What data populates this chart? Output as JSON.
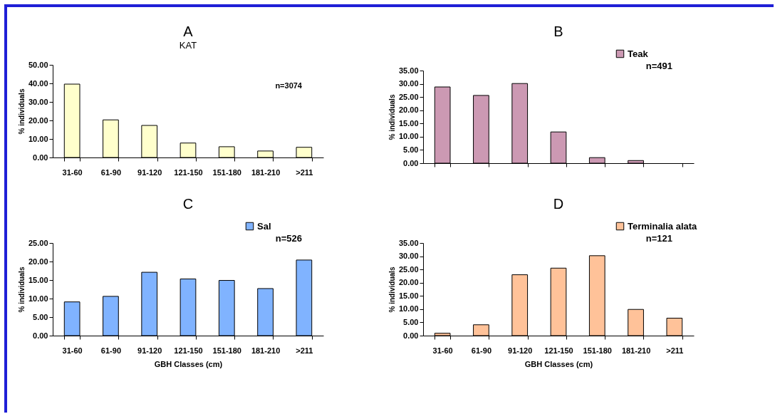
{
  "chart_data": [
    {
      "type": "bar",
      "title": "A",
      "subtitle": "KAT",
      "ylabel": "% individuals",
      "categories": [
        "31-60",
        "61-90",
        "91-120",
        "121-150",
        "151-180",
        "181-210",
        ">211"
      ],
      "series": [
        {
          "color": "#ffffcc",
          "values": [
            39.6,
            20.3,
            17.3,
            7.8,
            5.8,
            3.5,
            5.5
          ]
        }
      ],
      "ylim": [
        0,
        50
      ],
      "yticks": [
        {
          "value": 0,
          "label": "0.00"
        },
        {
          "value": 10,
          "label": "10.00"
        },
        {
          "value": 20,
          "label": "20.00"
        },
        {
          "value": 30,
          "label": "30.00"
        },
        {
          "value": 40,
          "label": "40.00"
        },
        {
          "value": 50,
          "label": "50.00"
        }
      ],
      "annotations": [
        "n=3074"
      ]
    },
    {
      "type": "bar",
      "title": "B",
      "ylabel": "% individuals",
      "categories": [
        null,
        null,
        null,
        null,
        null,
        null,
        null
      ],
      "series": [
        {
          "name": "Teak",
          "color": "#cc99b3",
          "values": [
            28.8,
            25.6,
            30.1,
            11.8,
            2.1,
            1.0,
            null
          ]
        }
      ],
      "ylim": [
        0,
        35
      ],
      "yticks": [
        {
          "value": 0,
          "label": "0.00"
        },
        {
          "value": 5,
          "label": "5.00"
        },
        {
          "value": 10,
          "label": "10.00"
        },
        {
          "value": 15,
          "label": "15.00"
        },
        {
          "value": 20,
          "label": "20.00"
        },
        {
          "value": 25,
          "label": "25.00"
        },
        {
          "value": 30,
          "label": "30.00"
        },
        {
          "value": 35,
          "label": "35.00"
        }
      ],
      "tick_labels": "y",
      "legend": "top right",
      "annotations": [
        "n=491"
      ]
    },
    {
      "type": "bar",
      "title": "C",
      "ylabel": "% individuals",
      "xlabel": "GBH Classes (cm)",
      "categories": [
        "31-60",
        "61-90",
        "91-120",
        "121-150",
        "151-180",
        "181-210",
        ">211"
      ],
      "series": [
        {
          "name": "Sal",
          "color": "#80b3ff",
          "values": [
            9.1,
            10.6,
            17.1,
            15.3,
            14.9,
            12.7,
            20.4
          ]
        }
      ],
      "ylim": [
        0,
        25
      ],
      "yticks": [
        {
          "value": 0,
          "label": "0.00"
        },
        {
          "value": 5,
          "label": "5.00"
        },
        {
          "value": 10,
          "label": "10.00"
        },
        {
          "value": 15,
          "label": "15.00"
        },
        {
          "value": 20,
          "label": "20.00"
        },
        {
          "value": 25,
          "label": "25.00"
        }
      ],
      "legend": "top right",
      "annotations": [
        "n=526"
      ]
    },
    {
      "type": "bar",
      "title": "D",
      "ylabel": "% individuals",
      "xlabel": "GBH Classes (cm)",
      "categories": [
        "31-60",
        "61-90",
        "91-120",
        "121-150",
        "151-180",
        "181-210",
        ">211"
      ],
      "series": [
        {
          "name": "Terminalia alata",
          "color": "#ffc299",
          "values": [
            0.9,
            4.1,
            23.0,
            25.5,
            30.2,
            9.9,
            6.6
          ]
        }
      ],
      "ylim": [
        0,
        35
      ],
      "yticks": [
        {
          "value": 0,
          "label": "0.00"
        },
        {
          "value": 5,
          "label": "5.00"
        },
        {
          "value": 10,
          "label": "10.00"
        },
        {
          "value": 15,
          "label": "15.00"
        },
        {
          "value": 20,
          "label": "20.00"
        },
        {
          "value": 25,
          "label": "25.00"
        },
        {
          "value": 30,
          "label": "30.00"
        },
        {
          "value": 35,
          "label": "35.00"
        }
      ],
      "legend": "top right",
      "annotations": [
        "n=121"
      ]
    }
  ]
}
